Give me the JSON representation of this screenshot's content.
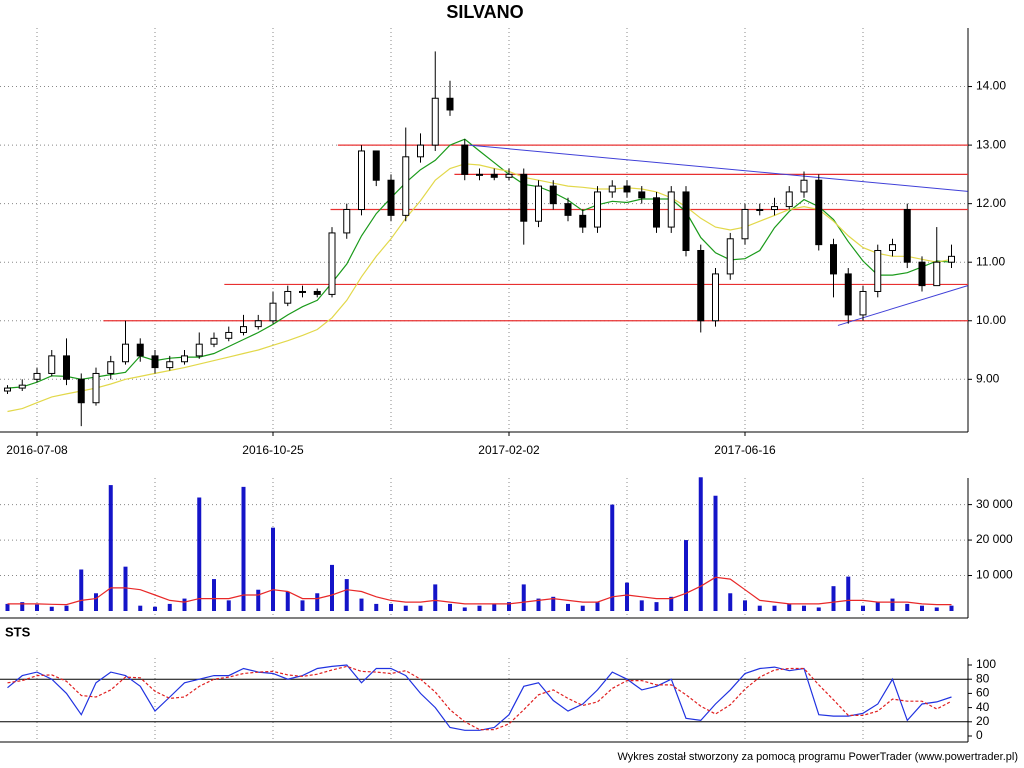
{
  "chart_data": [
    {
      "type": "candlestick",
      "title": "SILVANO",
      "categories": [
        null,
        null,
        "2016-07-08",
        null,
        null,
        null,
        null,
        null,
        null,
        null,
        null,
        null,
        null,
        null,
        null,
        null,
        null,
        null,
        "2016-10-25",
        null,
        null,
        null,
        null,
        null,
        null,
        null,
        null,
        null,
        null,
        null,
        null,
        null,
        null,
        null,
        "2017-02-02",
        null,
        null,
        null,
        null,
        null,
        null,
        null,
        null,
        null,
        null,
        null,
        null,
        null,
        null,
        null,
        "2017-06-16",
        null,
        null,
        null,
        null,
        null,
        null,
        null,
        null,
        null,
        null,
        null,
        null,
        null,
        null
      ],
      "open": [
        8.8,
        8.85,
        9.0,
        9.1,
        9.4,
        9.0,
        8.6,
        9.1,
        9.3,
        9.6,
        9.4,
        9.2,
        9.3,
        9.4,
        9.6,
        9.7,
        9.8,
        9.9,
        10.0,
        10.3,
        10.5,
        10.5,
        10.45,
        11.5,
        11.9,
        12.9,
        12.4,
        11.8,
        12.8,
        13.0,
        13.8,
        13.0,
        12.5,
        12.5,
        12.45,
        12.5,
        11.7,
        12.3,
        12.0,
        11.8,
        11.6,
        12.2,
        12.3,
        12.2,
        12.1,
        11.6,
        12.2,
        11.2,
        10.0,
        10.8,
        11.4,
        11.9,
        11.9,
        11.95,
        12.2,
        12.4,
        11.3,
        10.8,
        10.1,
        10.5,
        11.2,
        11.9,
        11.0,
        10.6,
        11.0
      ],
      "high": [
        8.9,
        9.0,
        9.2,
        9.5,
        9.7,
        9.1,
        9.2,
        9.4,
        10.0,
        9.7,
        9.5,
        9.4,
        9.5,
        9.8,
        9.8,
        9.9,
        10.1,
        10.1,
        10.5,
        10.6,
        10.6,
        10.55,
        11.6,
        12.0,
        13.0,
        12.9,
        12.5,
        13.3,
        13.2,
        14.6,
        14.1,
        13.1,
        12.6,
        12.6,
        12.6,
        12.6,
        12.4,
        12.4,
        12.1,
        11.9,
        12.3,
        12.4,
        12.4,
        12.3,
        12.2,
        12.3,
        12.3,
        11.3,
        10.9,
        11.5,
        12.0,
        12.0,
        12.1,
        12.3,
        12.55,
        12.5,
        11.4,
        10.9,
        10.6,
        11.3,
        11.4,
        12.0,
        11.1,
        11.6,
        11.3
      ],
      "low": [
        8.75,
        8.8,
        8.95,
        9.05,
        8.9,
        8.2,
        8.55,
        9.0,
        9.25,
        9.3,
        9.1,
        9.15,
        9.25,
        9.35,
        9.55,
        9.65,
        9.75,
        9.85,
        9.95,
        10.25,
        10.4,
        10.4,
        10.4,
        11.4,
        11.8,
        12.3,
        11.7,
        11.7,
        12.7,
        12.9,
        13.5,
        12.4,
        12.4,
        12.4,
        12.4,
        11.3,
        11.6,
        11.9,
        11.7,
        11.5,
        11.5,
        12.1,
        12.1,
        12.0,
        11.5,
        11.5,
        11.1,
        9.8,
        9.9,
        10.7,
        11.3,
        11.8,
        11.8,
        11.9,
        12.1,
        11.2,
        10.4,
        9.95,
        10.0,
        10.4,
        11.1,
        10.9,
        10.5,
        10.6,
        10.9
      ],
      "close": [
        8.85,
        8.9,
        9.1,
        9.4,
        9.0,
        8.6,
        9.1,
        9.3,
        9.6,
        9.4,
        9.2,
        9.3,
        9.4,
        9.6,
        9.7,
        9.8,
        9.9,
        10.0,
        10.3,
        10.5,
        10.5,
        10.45,
        11.5,
        11.9,
        12.9,
        12.4,
        11.8,
        12.8,
        13.0,
        13.8,
        13.6,
        12.5,
        12.5,
        12.45,
        12.5,
        11.7,
        12.3,
        12.0,
        11.8,
        11.6,
        12.2,
        12.3,
        12.2,
        12.1,
        11.6,
        12.2,
        11.2,
        10.0,
        10.8,
        11.4,
        11.9,
        11.9,
        11.95,
        12.2,
        12.4,
        11.3,
        10.8,
        10.1,
        10.5,
        11.2,
        11.3,
        11.0,
        10.6,
        11.0,
        11.1
      ],
      "lines": [
        {
          "color": "#1a9a1a",
          "values": [
            8.85,
            8.87,
            8.95,
            9.06,
            9.05,
            9.0,
            9.04,
            9.08,
            9.12,
            9.4,
            9.32,
            9.36,
            9.38,
            9.38,
            9.44,
            9.56,
            9.68,
            9.8,
            9.94,
            10.1,
            10.24,
            10.35,
            10.65,
            10.97,
            11.45,
            11.83,
            12.1,
            12.36,
            12.58,
            12.74,
            13.0,
            13.1,
            12.9,
            12.7,
            12.5,
            12.33,
            12.29,
            12.19,
            12.06,
            11.88,
            11.98,
            12.04,
            12.02,
            12.08,
            12.08,
            12.08,
            11.86,
            11.42,
            11.16,
            11.04,
            11.06,
            11.2,
            11.59,
            11.87,
            12.07,
            11.95,
            11.73,
            11.35,
            11.02,
            10.78,
            10.78,
            10.82,
            10.92,
            11.02,
            11.0
          ]
        },
        {
          "color": "#e2d84a",
          "values": [
            8.45,
            8.5,
            8.6,
            8.7,
            8.75,
            8.8,
            8.85,
            8.92,
            9.0,
            9.05,
            9.1,
            9.15,
            9.2,
            9.26,
            9.32,
            9.38,
            9.44,
            9.5,
            9.58,
            9.66,
            9.75,
            9.85,
            10.05,
            10.35,
            10.75,
            11.1,
            11.4,
            11.75,
            12.05,
            12.4,
            12.6,
            12.68,
            12.66,
            12.6,
            12.55,
            12.45,
            12.4,
            12.35,
            12.3,
            12.28,
            12.25,
            12.25,
            12.27,
            12.25,
            12.2,
            12.1,
            11.95,
            11.75,
            11.6,
            11.55,
            11.6,
            11.7,
            11.8,
            11.9,
            11.95,
            11.9,
            11.7,
            11.45,
            11.25,
            11.15,
            11.1,
            11.1,
            11.05,
            11.0,
            11.05
          ]
        }
      ],
      "levels": [
        {
          "value": 13.0,
          "start": 22.4
        },
        {
          "value": 12.5,
          "start": 30.3
        },
        {
          "value": 11.9,
          "start": 21.9
        },
        {
          "value": 10.62,
          "start": 14.7
        },
        {
          "value": 10.0,
          "start": 6.5
        }
      ],
      "level_color": "#e83030",
      "trendlines": [
        {
          "x": [
            31.3,
            65.1
          ],
          "y": [
            13.0,
            12.21
          ]
        },
        {
          "x": [
            56.3,
            65.1
          ],
          "y": [
            9.92,
            10.6
          ]
        }
      ],
      "trend_color": "#4040d8",
      "ylim": [
        8.1,
        15.0
      ],
      "yticks": [
        {
          "value": 9,
          "label": "9.00"
        },
        {
          "value": 10,
          "label": "10.00"
        },
        {
          "value": 11,
          "label": "11.00"
        },
        {
          "value": 12,
          "label": "12.00"
        },
        {
          "value": 13,
          "label": "13.00"
        },
        {
          "value": 14,
          "label": "14.00"
        }
      ],
      "grid": true
    },
    {
      "type": "bar",
      "values": [
        2000,
        2500,
        1800,
        1200,
        1500,
        11700,
        5000,
        35500,
        12500,
        1500,
        1200,
        2000,
        3500,
        32000,
        9000,
        3000,
        35000,
        6000,
        23500,
        5500,
        3000,
        5000,
        13000,
        9000,
        3500,
        2000,
        2000,
        1500,
        1500,
        7500,
        2000,
        1000,
        1500,
        2000,
        2500,
        7500,
        3500,
        4000,
        2000,
        1500,
        2500,
        30000,
        8000,
        3000,
        2500,
        4000,
        20000,
        37700,
        32500,
        5000,
        3000,
        1500,
        1500,
        2000,
        1500,
        1000,
        7000,
        9700,
        1500,
        2500,
        3500,
        2000,
        1500,
        1000,
        1500
      ],
      "color": "#1414c8",
      "average": {
        "color": "#e82828",
        "values": [
          2000,
          2000,
          2000,
          1900,
          1800,
          3000,
          3500,
          6500,
          6500,
          6000,
          4500,
          3000,
          2500,
          3500,
          3500,
          3500,
          4500,
          4500,
          6000,
          5500,
          3500,
          3500,
          4500,
          6000,
          5500,
          4000,
          3000,
          2500,
          2500,
          3000,
          2500,
          2000,
          2000,
          2000,
          2000,
          2500,
          3000,
          3500,
          3000,
          2500,
          2500,
          4000,
          4500,
          4000,
          3500,
          3500,
          5000,
          7000,
          9500,
          9000,
          6000,
          3000,
          2500,
          2000,
          2000,
          2000,
          2500,
          3000,
          3000,
          2500,
          2500,
          2500,
          2000,
          1800,
          1800
        ]
      },
      "ylim": [
        0,
        37500
      ],
      "yticks": [
        {
          "value": 10000,
          "label": "10 000"
        },
        {
          "value": 20000,
          "label": "20 000"
        },
        {
          "value": 30000,
          "label": "30 000"
        }
      ],
      "grid": true
    },
    {
      "type": "line",
      "title": "STS",
      "series": [
        {
          "color": "#2032e0",
          "values": [
            68,
            85,
            90,
            80,
            60,
            30,
            75,
            90,
            85,
            70,
            35,
            55,
            75,
            80,
            85,
            85,
            95,
            90,
            88,
            80,
            85,
            95,
            98,
            100,
            75,
            95,
            95,
            85,
            60,
            40,
            12,
            8,
            8,
            12,
            30,
            70,
            75,
            50,
            35,
            45,
            65,
            90,
            80,
            65,
            70,
            80,
            25,
            22,
            45,
            65,
            88,
            95,
            97,
            92,
            95,
            30,
            28,
            28,
            32,
            45,
            80,
            22,
            45,
            48,
            55
          ]
        },
        {
          "color": "#e02020",
          "values": [
            75,
            78,
            85,
            86,
            77,
            57,
            55,
            65,
            83,
            82,
            63,
            53,
            55,
            70,
            80,
            83,
            88,
            90,
            91,
            86,
            84,
            87,
            93,
            98,
            91,
            90,
            88,
            92,
            80,
            62,
            37,
            20,
            9,
            9,
            17,
            37,
            58,
            65,
            53,
            43,
            48,
            67,
            78,
            78,
            72,
            72,
            58,
            42,
            31,
            44,
            66,
            83,
            93,
            95,
            95,
            72,
            51,
            29,
            29,
            35,
            52,
            49,
            49,
            38,
            49
          ]
        }
      ],
      "levels": [
        20,
        80
      ],
      "ylim": [
        0,
        100
      ],
      "yticks": [
        0,
        20,
        40,
        60,
        80,
        100
      ]
    }
  ],
  "footer": "Wykres został stworzony za pomocą programu PowerTrader (www.powertrader.pl)"
}
